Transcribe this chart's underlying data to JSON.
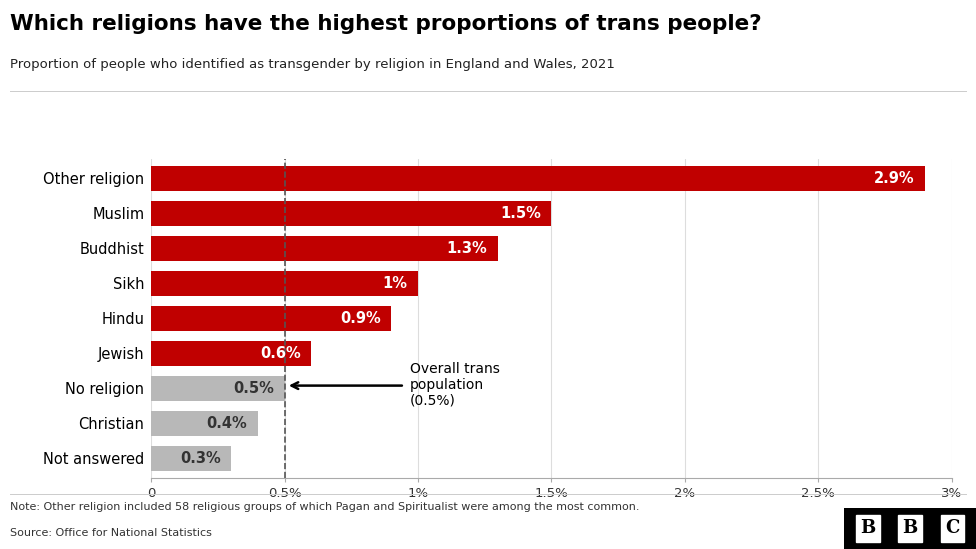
{
  "title": "Which religions have the highest proportions of trans people?",
  "subtitle": "Proportion of people who identified as transgender by religion in England and Wales, 2021",
  "categories": [
    "Other religion",
    "Muslim",
    "Buddhist",
    "Sikh",
    "Hindu",
    "Jewish",
    "No religion",
    "Christian",
    "Not answered"
  ],
  "values": [
    2.9,
    1.5,
    1.3,
    1.0,
    0.9,
    0.6,
    0.5,
    0.4,
    0.3
  ],
  "bar_colors": [
    "#c00000",
    "#c00000",
    "#c00000",
    "#c00000",
    "#c00000",
    "#c00000",
    "#b8b8b8",
    "#b8b8b8",
    "#b8b8b8"
  ],
  "value_labels": [
    "2.9%",
    "1.5%",
    "1.3%",
    "1%",
    "0.9%",
    "0.6%",
    "0.5%",
    "0.4%",
    "0.3%"
  ],
  "xlim": [
    0,
    3.0
  ],
  "xtick_values": [
    0,
    0.5,
    1.0,
    1.5,
    2.0,
    2.5,
    3.0
  ],
  "xtick_labels": [
    "0",
    "0.5%",
    "1%",
    "1.5%",
    "2%",
    "2.5%",
    "3%"
  ],
  "reference_line": 0.5,
  "reference_label_line1": "Overall trans",
  "reference_label_line2": "population",
  "reference_label_line3": "(0.5%)",
  "footnote1": "Note: Other religion included 58 religious groups of which Pagan and Spiritualist were among the most common.",
  "footnote2": "Source: Office for National Statistics",
  "background_color": "#ffffff",
  "title_color": "#000000",
  "subtitle_color": "#222222",
  "label_color_white": "#ffffff",
  "label_color_dark": "#333333",
  "bbc_bg": "#000000",
  "bbc_text": "#ffffff"
}
